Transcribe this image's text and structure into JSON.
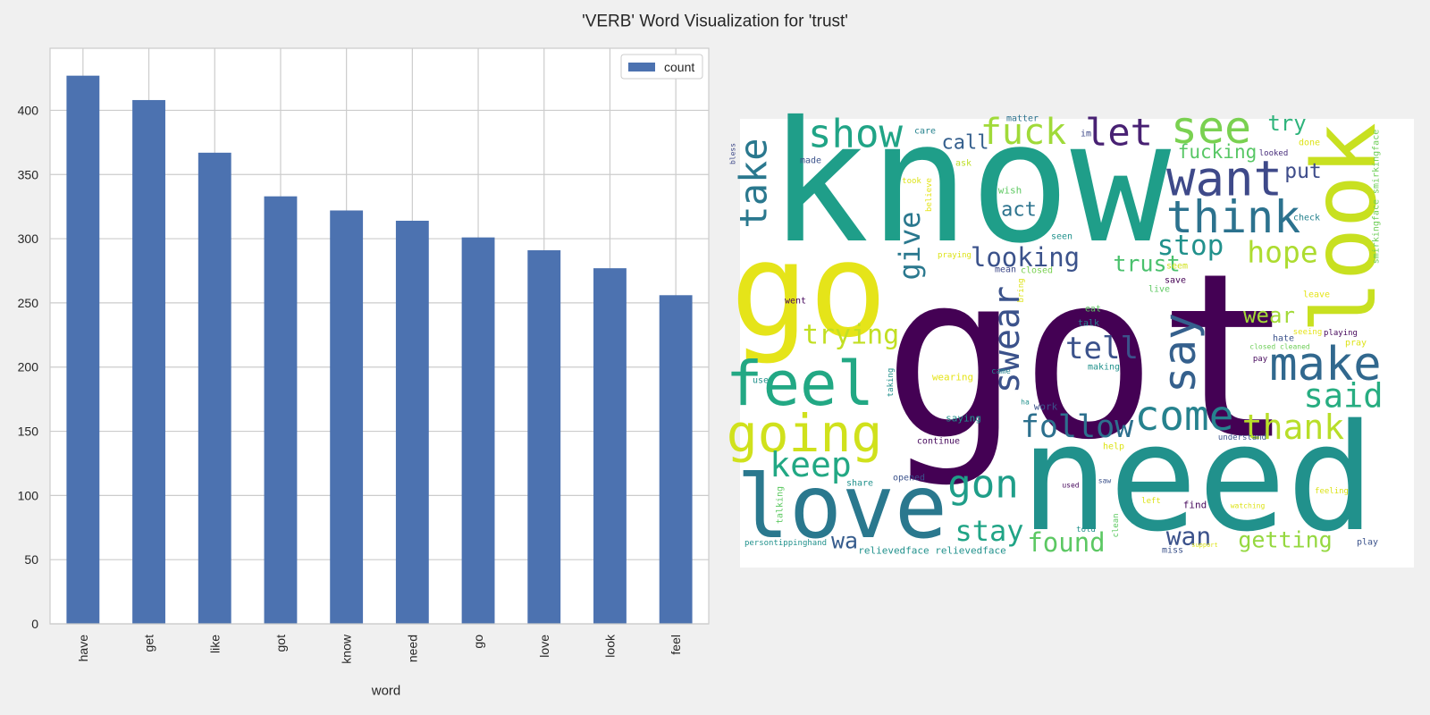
{
  "title": "'VERB' Word Visualization for 'trust'",
  "chart_data": {
    "type": "bar",
    "x_label": "word",
    "categories": [
      "have",
      "get",
      "like",
      "got",
      "know",
      "need",
      "go",
      "love",
      "look",
      "feel"
    ],
    "series": [
      {
        "name": "count",
        "color": "#4c72b0",
        "values": [
          427,
          408,
          367,
          333,
          322,
          314,
          301,
          291,
          277,
          256
        ]
      }
    ],
    "ylim": [
      0,
      448.35
    ],
    "yticks": [
      0,
      50,
      100,
      150,
      200,
      250,
      300,
      350,
      400
    ],
    "grid": true,
    "legend": "upper right"
  },
  "word_cloud": {
    "words": [
      "got",
      "know",
      "need",
      "go",
      "look",
      "love",
      "feel",
      "going",
      "make",
      "see",
      "want",
      "think",
      "show",
      "fuck",
      "let",
      "take",
      "say",
      "swear",
      "come",
      "thank",
      "said",
      "follow",
      "tell",
      "keep",
      "gon",
      "stay",
      "trying",
      "looking",
      "give",
      "stop",
      "hope",
      "trust",
      "wear",
      "try",
      "put",
      "fucking",
      "call",
      "act",
      "found",
      "wan",
      "getting",
      "wa",
      "matter",
      "care",
      "im",
      "done",
      "looked",
      "bless",
      "made",
      "ask",
      "took",
      "believe",
      "wish",
      "check",
      "smirkingface smirkingface",
      "seen",
      "praying",
      "mean",
      "closed",
      "seem",
      "save",
      "live",
      "bring",
      "leave",
      "went",
      "eat",
      "talk",
      "seeing",
      "playing",
      "hate",
      "closed cleaned",
      "pray",
      "pay",
      "taking",
      "came",
      "wearing",
      "making",
      "use",
      "ha",
      "work",
      "saying",
      "continue",
      "help",
      "understand",
      "opened",
      "share",
      "used",
      "saw",
      "feeling",
      "talking",
      "left",
      "find",
      "watching",
      "clean",
      "told",
      "persontippinghand",
      "support",
      "play",
      "relievedface relievedface",
      "miss"
    ],
    "colors": [
      "#440154",
      "#1f9e89",
      "#21918c",
      "#e5e419",
      "#c8e020",
      "#2a788e",
      "#22a884",
      "#d0e11c",
      "#31688e",
      "#7ad151",
      "#3e4989",
      "#2c728e",
      "#20a486",
      "#a0da39",
      "#482173",
      "#2a788e",
      "#35608d",
      "#3b528b",
      "#26828e",
      "#b8de29",
      "#27ad81",
      "#2d708e",
      "#3b528b",
      "#22a884",
      "#1f9e89",
      "#20a486",
      "#c2df23",
      "#3b528b",
      "#2a788e",
      "#21918c",
      "#addc30",
      "#4ac16d",
      "#a2da37",
      "#2fb47c",
      "#3e4c8a",
      "#58c765",
      "#355f8d",
      "#2c738e",
      "#5cc863",
      "#3b528b",
      "#95d840",
      "#365c8d",
      "#2c728e",
      "#26828e",
      "#3e4989",
      "#dde318",
      "#472d7b",
      "#3e4989",
      "#3b528b",
      "#bddf26",
      "#dde318",
      "#e5e419",
      "#5ec962",
      "#26828e",
      "#6ece58",
      "#21918c",
      "#dde318",
      "#3e4989",
      "#7ad151",
      "#d0e11c",
      "#440154",
      "#5ec962",
      "#dde318",
      "#e5e419",
      "#46085c",
      "#5ec962",
      "#26828e",
      "#e5e419",
      "#46085c",
      "#3b528b",
      "#6ece58",
      "#dde318",
      "#46085c",
      "#21918c",
      "#26828e",
      "#e5e419",
      "#21918c",
      "#21918c",
      "#21918c",
      "#3b528b",
      "#21918c",
      "#46085c",
      "#dde318",
      "#3b528b",
      "#3b528b",
      "#21918c",
      "#46085c",
      "#3b528b",
      "#dde318",
      "#5ec962",
      "#dde318",
      "#46085c",
      "#dde318",
      "#5ec962",
      "#21918c",
      "#21918c",
      "#dde318",
      "#3b528b",
      "#21918c",
      "#3b528b"
    ]
  }
}
